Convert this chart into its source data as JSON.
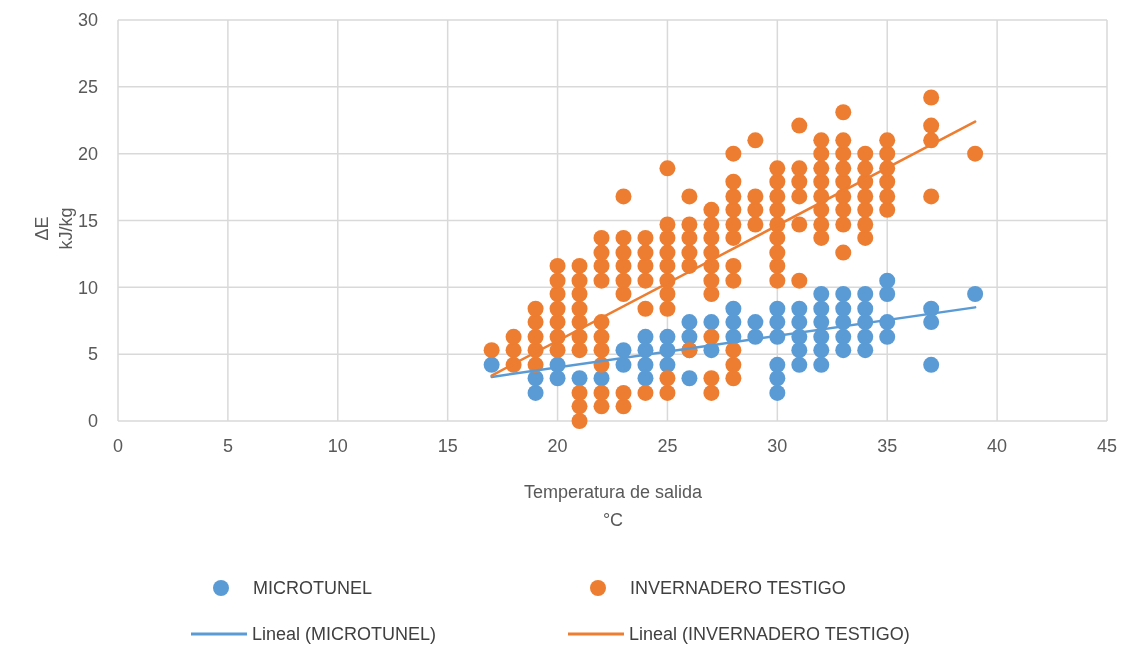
{
  "chart_data": {
    "type": "scatter",
    "xlabel": "Temperatura de salida\n°C",
    "ylabel": "ΔE\nkJ/kg",
    "xlim": [
      0,
      45
    ],
    "xticks": [
      0,
      5,
      10,
      15,
      20,
      25,
      30,
      35,
      40,
      45
    ],
    "ylim": [
      0,
      30
    ],
    "yticks": [
      0,
      5,
      10,
      15,
      20,
      25,
      30
    ],
    "grid": true,
    "legend": "bottom",
    "series": [
      {
        "name": "MICROTUNEL",
        "color": "#5b9bd5",
        "marker": "circle",
        "x": [
          17,
          19,
          19,
          20,
          20,
          21,
          22,
          23,
          23,
          24,
          24,
          24,
          24,
          25,
          25,
          25,
          26,
          26,
          26,
          26,
          27,
          27,
          28,
          28,
          28,
          29,
          29,
          30,
          30,
          30,
          30,
          30,
          30,
          31,
          31,
          31,
          31,
          31,
          32,
          32,
          32,
          32,
          32,
          32,
          33,
          33,
          33,
          33,
          33,
          34,
          34,
          34,
          34,
          34,
          35,
          35,
          35,
          35,
          37,
          37,
          37,
          39
        ],
        "values": [
          4.2,
          2.1,
          3.2,
          3.2,
          4.2,
          3.2,
          3.2,
          4.2,
          5.3,
          3.2,
          4.2,
          5.3,
          6.3,
          4.2,
          5.3,
          6.3,
          3.2,
          5.3,
          6.3,
          7.4,
          5.3,
          7.4,
          6.3,
          7.4,
          8.4,
          6.3,
          7.4,
          2.1,
          3.2,
          4.2,
          6.3,
          7.4,
          8.4,
          4.2,
          5.3,
          6.3,
          7.4,
          8.4,
          4.2,
          5.3,
          6.3,
          7.4,
          8.4,
          9.5,
          5.3,
          6.3,
          7.4,
          8.4,
          9.5,
          5.3,
          6.3,
          7.4,
          8.4,
          9.5,
          6.3,
          7.4,
          9.5,
          10.5,
          4.2,
          7.4,
          8.4,
          9.5
        ]
      },
      {
        "name": "INVERNADERO TESTIGO",
        "color": "#ed7d31",
        "marker": "circle",
        "x": [
          17,
          18,
          18,
          18,
          19,
          19,
          19,
          19,
          19,
          20,
          20,
          20,
          20,
          20,
          20,
          20,
          21,
          21,
          21,
          21,
          21,
          21,
          21,
          21,
          21,
          21,
          22,
          22,
          22,
          22,
          22,
          22,
          22,
          22,
          22,
          22,
          23,
          23,
          23,
          23,
          23,
          23,
          23,
          23,
          24,
          24,
          24,
          24,
          24,
          24,
          25,
          25,
          25,
          25,
          25,
          25,
          25,
          25,
          25,
          25,
          26,
          26,
          26,
          26,
          26,
          26,
          27,
          27,
          27,
          27,
          27,
          27,
          27,
          27,
          27,
          27,
          28,
          28,
          28,
          28,
          28,
          28,
          28,
          28,
          28,
          28,
          28,
          29,
          29,
          29,
          29,
          30,
          30,
          30,
          30,
          30,
          30,
          30,
          30,
          30,
          31,
          31,
          31,
          31,
          31,
          31,
          32,
          32,
          32,
          32,
          32,
          32,
          32,
          32,
          33,
          33,
          33,
          33,
          33,
          33,
          33,
          33,
          33,
          34,
          34,
          34,
          34,
          34,
          34,
          34,
          35,
          35,
          35,
          35,
          35,
          35,
          37,
          37,
          37,
          37,
          39
        ],
        "values": [
          5.3,
          4.2,
          5.3,
          6.3,
          4.2,
          5.3,
          6.3,
          7.4,
          8.4,
          5.3,
          6.3,
          7.4,
          8.4,
          9.5,
          10.5,
          11.6,
          0,
          1.1,
          2.1,
          5.3,
          6.3,
          7.4,
          8.4,
          9.5,
          10.5,
          11.6,
          1.1,
          2.1,
          4.2,
          5.3,
          6.3,
          7.4,
          10.5,
          11.6,
          12.6,
          13.7,
          1.1,
          2.1,
          9.5,
          10.5,
          11.6,
          12.6,
          13.7,
          16.8,
          2.1,
          8.4,
          10.5,
          11.6,
          12.6,
          13.7,
          2.1,
          3.2,
          8.4,
          9.5,
          10.5,
          11.6,
          12.6,
          13.7,
          14.7,
          18.9,
          5.3,
          11.6,
          12.6,
          13.7,
          14.7,
          16.8,
          2.1,
          3.2,
          6.3,
          9.5,
          10.5,
          11.6,
          12.6,
          13.7,
          14.7,
          15.8,
          3.2,
          4.2,
          5.3,
          10.5,
          11.6,
          13.7,
          14.7,
          15.8,
          16.8,
          17.9,
          20,
          14.7,
          15.8,
          16.8,
          21,
          10.5,
          11.6,
          12.6,
          13.7,
          14.7,
          15.8,
          16.8,
          17.9,
          18.9,
          10.5,
          14.7,
          16.8,
          17.9,
          18.9,
          22.1,
          13.7,
          14.7,
          15.8,
          16.8,
          17.9,
          18.9,
          20,
          21,
          12.6,
          14.7,
          15.8,
          16.8,
          17.9,
          18.9,
          20,
          21,
          23.1,
          13.7,
          14.7,
          15.8,
          16.8,
          17.9,
          18.9,
          20,
          15.8,
          16.8,
          17.9,
          18.9,
          20,
          21,
          16.8,
          21,
          22.1,
          24.2,
          20
        ]
      },
      {
        "name": "Lineal (MICROTUNEL)",
        "color": "#5b9bd5",
        "type": "line",
        "x": [
          17,
          39
        ],
        "values": [
          3.3,
          8.5
        ]
      },
      {
        "name": "Lineal (INVERNADERO TESTIGO)",
        "color": "#ed7d31",
        "type": "line",
        "x": [
          17,
          39
        ],
        "values": [
          3.4,
          22.4
        ]
      }
    ]
  }
}
